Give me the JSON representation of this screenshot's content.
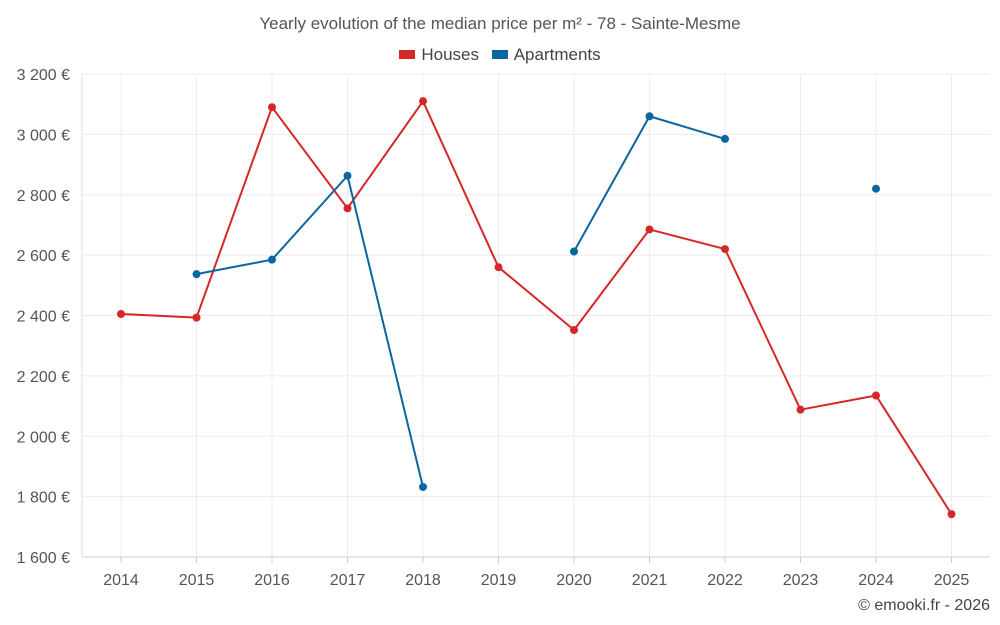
{
  "chart_data": {
    "type": "line",
    "title": "Yearly evolution of the median price per m² - 78 - Sainte-Mesme",
    "xlabel": "",
    "ylabel": "",
    "categories": [
      "2014",
      "2015",
      "2016",
      "2017",
      "2018",
      "2019",
      "2020",
      "2021",
      "2022",
      "2023",
      "2024",
      "2025"
    ],
    "ylim": [
      1600,
      3200
    ],
    "yticks": [
      1600,
      1800,
      2000,
      2200,
      2400,
      2600,
      2800,
      3000,
      3200
    ],
    "ytick_labels": [
      "1 600 €",
      "1 800 €",
      "2 000 €",
      "2 200 €",
      "2 400 €",
      "2 600 €",
      "2 800 €",
      "3 000 €",
      "3 200 €"
    ],
    "grid": true,
    "legend_position": "top-center",
    "series": [
      {
        "name": "Houses",
        "color": "#d62728",
        "values": [
          2405,
          2393,
          3090,
          2755,
          3110,
          2560,
          2352,
          2685,
          2620,
          2088,
          2135,
          1742
        ]
      },
      {
        "name": "Apartments",
        "color": "#0a66a0",
        "values": [
          null,
          2537,
          2585,
          2863,
          1832,
          null,
          2612,
          3060,
          2985,
          null,
          2820,
          null
        ]
      }
    ]
  },
  "watermark": "© emooki.fr - 2026"
}
